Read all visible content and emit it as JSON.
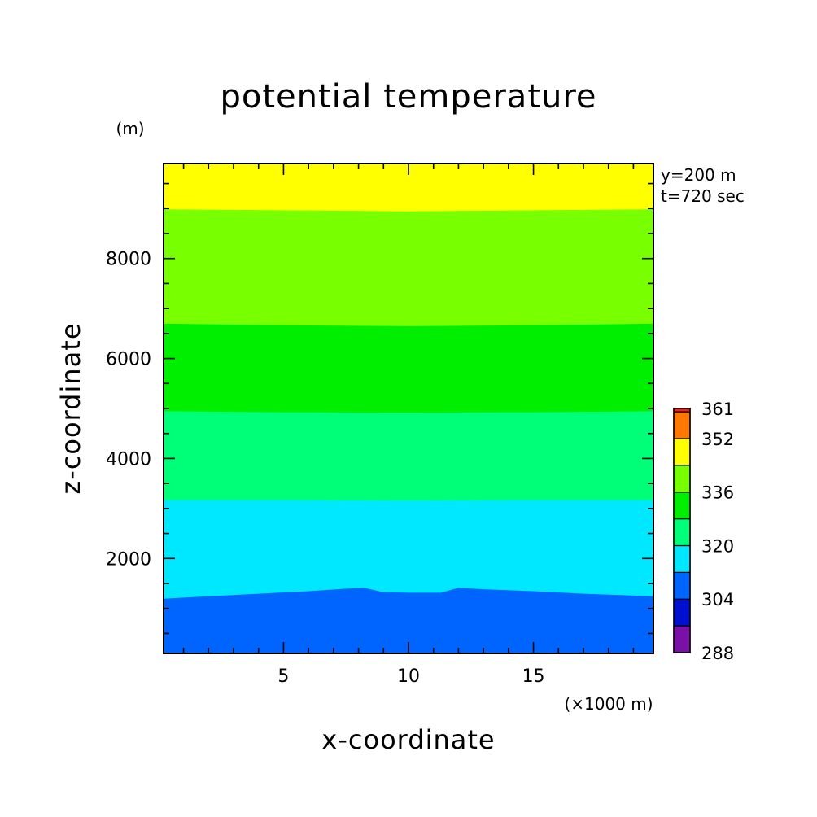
{
  "chart_data": {
    "type": "contour",
    "title": "potential temperature",
    "xlabel": "x-coordinate",
    "ylabel": "z-coordinate",
    "x_unit": "(×1000 m)",
    "y_unit": "(m)",
    "annotations": [
      "y=200 m",
      "t=720 sec"
    ],
    "xlim": [
      0.2,
      19.8
    ],
    "ylim": [
      100,
      9900
    ],
    "x_ticks": [
      5,
      10,
      15
    ],
    "x_tick_labels": [
      "5",
      "10",
      "15"
    ],
    "y_ticks": [
      2000,
      4000,
      6000,
      8000
    ],
    "y_tick_labels": [
      "2000",
      "4000",
      "6000",
      "8000"
    ],
    "levels": [
      288,
      296,
      304,
      312,
      320,
      328,
      336,
      344,
      352,
      360,
      361
    ],
    "colorbar_tick_labels": [
      "288",
      "304",
      "320",
      "336",
      "352",
      "361"
    ],
    "colorbar_tick_values": [
      288,
      304,
      320,
      336,
      352,
      361
    ],
    "colors": [
      "#7a10a8",
      "#0010d0",
      "#0064ff",
      "#00e8ff",
      "#00ff78",
      "#00ee00",
      "#78ff00",
      "#ffff00",
      "#ff7800",
      "#ff1a1a"
    ],
    "band_fills": [
      "#0064ff",
      "#00e8ff",
      "#00ff78",
      "#00ee00",
      "#78ff00",
      "#ffff00"
    ],
    "boundaries": [
      {
        "x": [
          0.2,
          2,
          4,
          6,
          7.5,
          8.2,
          9,
          10,
          11.3,
          12,
          13,
          15,
          17,
          19.8
        ],
        "z": [
          1200,
          1250,
          1300,
          1350,
          1400,
          1420,
          1330,
          1320,
          1320,
          1420,
          1390,
          1350,
          1300,
          1250
        ]
      },
      {
        "x": [
          0.2,
          5,
          10,
          15,
          19.8
        ],
        "z": [
          3170,
          3170,
          3160,
          3170,
          3170
        ]
      },
      {
        "x": [
          0.2,
          5,
          10,
          15,
          19.8
        ],
        "z": [
          4950,
          4930,
          4920,
          4930,
          4950
        ]
      },
      {
        "x": [
          0.2,
          5,
          10,
          15,
          19.8
        ],
        "z": [
          6700,
          6670,
          6650,
          6670,
          6700
        ]
      },
      {
        "x": [
          0.2,
          5,
          10,
          15,
          19.8
        ],
        "z": [
          8990,
          8970,
          8950,
          8970,
          8990
        ]
      }
    ]
  }
}
